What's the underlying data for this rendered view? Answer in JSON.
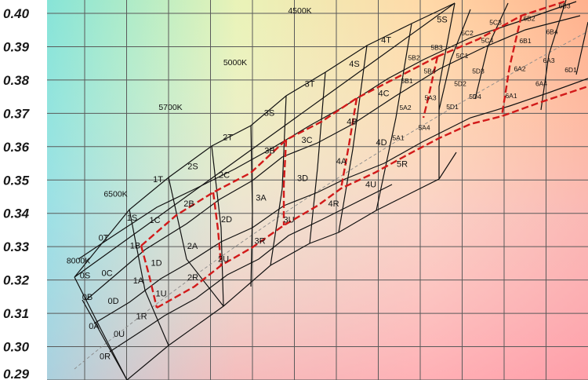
{
  "chart_data": {
    "type": "bin-diagram",
    "y_ticks": [
      "0.40",
      "0.39",
      "0.38",
      "0.37",
      "0.36",
      "0.35",
      "0.34",
      "0.33",
      "0.32",
      "0.31",
      "0.30",
      "0.29"
    ],
    "ylim": [
      0.29,
      0.404
    ],
    "grid": true,
    "cct_labels": [
      {
        "text": "8000K",
        "x": 0.304,
        "y": 0.325
      },
      {
        "text": "6500K",
        "x": 0.3135,
        "y": 0.345
      },
      {
        "text": "5700K",
        "x": 0.3275,
        "y": 0.371
      },
      {
        "text": "5000K",
        "x": 0.344,
        "y": 0.3845
      },
      {
        "text": "4500K",
        "x": 0.3605,
        "y": 0.4
      }
    ],
    "bins": [
      {
        "label": "0S",
        "x": 0.3057,
        "y": 0.3205
      },
      {
        "label": "0T",
        "x": 0.3104,
        "y": 0.3318
      },
      {
        "label": "0C",
        "x": 0.3113,
        "y": 0.3212
      },
      {
        "label": "0B",
        "x": 0.3063,
        "y": 0.314
      },
      {
        "label": "0D",
        "x": 0.3129,
        "y": 0.3128
      },
      {
        "label": "0A",
        "x": 0.308,
        "y": 0.3053
      },
      {
        "label": "0U",
        "x": 0.3144,
        "y": 0.303
      },
      {
        "label": "0R",
        "x": 0.3108,
        "y": 0.2963
      },
      {
        "label": "1S",
        "x": 0.3177,
        "y": 0.3378
      },
      {
        "label": "1T",
        "x": 0.3243,
        "y": 0.3494
      },
      {
        "label": "1C",
        "x": 0.3235,
        "y": 0.3371
      },
      {
        "label": "1B",
        "x": 0.3185,
        "y": 0.3295
      },
      {
        "label": "1D",
        "x": 0.3239,
        "y": 0.3243
      },
      {
        "label": "1A",
        "x": 0.3193,
        "y": 0.319
      },
      {
        "label": "1U",
        "x": 0.3251,
        "y": 0.3151
      },
      {
        "label": "1R",
        "x": 0.3201,
        "y": 0.3083
      },
      {
        "label": "2S",
        "x": 0.3332,
        "y": 0.3533
      },
      {
        "label": "2T",
        "x": 0.3421,
        "y": 0.3619
      },
      {
        "label": "2B",
        "x": 0.3322,
        "y": 0.342
      },
      {
        "label": "2C",
        "x": 0.3412,
        "y": 0.3506
      },
      {
        "label": "2A",
        "x": 0.3331,
        "y": 0.3293
      },
      {
        "label": "2D",
        "x": 0.3418,
        "y": 0.3373
      },
      {
        "label": "2R",
        "x": 0.3332,
        "y": 0.3199
      },
      {
        "label": "2U",
        "x": 0.341,
        "y": 0.3255
      },
      {
        "label": "3S",
        "x": 0.3527,
        "y": 0.3693
      },
      {
        "label": "3T",
        "x": 0.363,
        "y": 0.378
      },
      {
        "label": "3B",
        "x": 0.3528,
        "y": 0.3579
      },
      {
        "label": "3C",
        "x": 0.3623,
        "y": 0.3611
      },
      {
        "label": "3A",
        "x": 0.3506,
        "y": 0.3438
      },
      {
        "label": "3D",
        "x": 0.3612,
        "y": 0.3497
      },
      {
        "label": "3R",
        "x": 0.3503,
        "y": 0.3309
      },
      {
        "label": "3U",
        "x": 0.3577,
        "y": 0.3372
      },
      {
        "label": "4S",
        "x": 0.3744,
        "y": 0.384
      },
      {
        "label": "4T",
        "x": 0.3825,
        "y": 0.3912
      },
      {
        "label": "4B",
        "x": 0.3738,
        "y": 0.3667
      },
      {
        "label": "4C",
        "x": 0.3819,
        "y": 0.3751
      },
      {
        "label": "4A",
        "x": 0.3711,
        "y": 0.3548
      },
      {
        "label": "4D",
        "x": 0.3813,
        "y": 0.3604
      },
      {
        "label": "4R",
        "x": 0.3691,
        "y": 0.342
      },
      {
        "label": "4U",
        "x": 0.3786,
        "y": 0.3478
      },
      {
        "label": "5S",
        "x": 0.3968,
        "y": 0.3973
      },
      {
        "label": "5R",
        "x": 0.3866,
        "y": 0.354
      },
      {
        "label": "5A1",
        "x": 0.3856,
        "y": 0.362
      },
      {
        "label": "5A2",
        "x": 0.3874,
        "y": 0.371
      },
      {
        "label": "5A3",
        "x": 0.3938,
        "y": 0.374
      },
      {
        "label": "5A4",
        "x": 0.3922,
        "y": 0.365
      },
      {
        "label": "5B1",
        "x": 0.3878,
        "y": 0.379
      },
      {
        "label": "5B2",
        "x": 0.3896,
        "y": 0.386
      },
      {
        "label": "5B3",
        "x": 0.3954,
        "y": 0.389
      },
      {
        "label": "5B4",
        "x": 0.3936,
        "y": 0.382
      },
      {
        "label": "5C1",
        "x": 0.4019,
        "y": 0.3866
      },
      {
        "label": "5C2",
        "x": 0.4032,
        "y": 0.3934
      },
      {
        "label": "5C3",
        "x": 0.4104,
        "y": 0.3966
      },
      {
        "label": "5C4",
        "x": 0.4083,
        "y": 0.3912
      },
      {
        "label": "5D1",
        "x": 0.3994,
        "y": 0.3713
      },
      {
        "label": "5D2",
        "x": 0.4014,
        "y": 0.3782
      },
      {
        "label": "5D3",
        "x": 0.406,
        "y": 0.382
      },
      {
        "label": "5D4",
        "x": 0.4052,
        "y": 0.3743
      },
      {
        "label": "6A1",
        "x": 0.4144,
        "y": 0.3746
      },
      {
        "label": "6A2",
        "x": 0.4166,
        "y": 0.3827
      },
      {
        "label": "6A3",
        "x": 0.424,
        "y": 0.3852
      },
      {
        "label": "6A4",
        "x": 0.4221,
        "y": 0.3782
      },
      {
        "label": "6B1",
        "x": 0.418,
        "y": 0.391
      },
      {
        "label": "6B2",
        "x": 0.419,
        "y": 0.3978
      },
      {
        "label": "6B3",
        "x": 0.428,
        "y": 0.4015
      },
      {
        "label": "6B4",
        "x": 0.4248,
        "y": 0.3937
      },
      {
        "label": "6D1",
        "x": 0.4296,
        "y": 0.3823
      }
    ]
  }
}
